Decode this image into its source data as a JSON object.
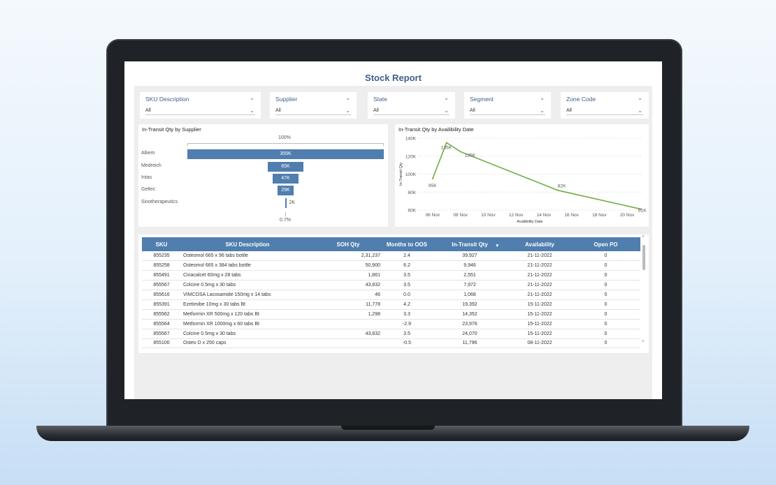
{
  "report": {
    "title": "Stock Report"
  },
  "slicers": [
    {
      "label": "SKU Description",
      "value": "All"
    },
    {
      "label": "Supplier",
      "value": "All"
    },
    {
      "label": "State",
      "value": "All"
    },
    {
      "label": "Segment",
      "value": "All"
    },
    {
      "label": "Zone Code",
      "value": "All"
    }
  ],
  "funnel": {
    "title": "In-Transit Qty by Supplier",
    "top_pct": "100%",
    "bottom_pct": "0.7%",
    "items": [
      {
        "label": "Alkem",
        "value": 355000,
        "display": "355K"
      },
      {
        "label": "Medreich",
        "value": 65000,
        "display": "65K"
      },
      {
        "label": "Intas",
        "value": 47000,
        "display": "47K"
      },
      {
        "label": "Geltec",
        "value": 29000,
        "display": "29K"
      },
      {
        "label": "Sinotherapeutics",
        "value": 2000,
        "display": "2K"
      }
    ]
  },
  "chart_data": {
    "type": "line",
    "title": "In-Transit Qty by Availibility Date",
    "xlabel": "Availibility Date",
    "ylabel": "In-Transit Qty",
    "x_ticks": [
      "06 Nov",
      "08 Nov",
      "10 Nov",
      "12 Nov",
      "14 Nov",
      "16 Nov",
      "18 Nov",
      "20 Nov"
    ],
    "y_ticks": [
      "60K",
      "80K",
      "100K",
      "120K",
      "140K"
    ],
    "ylim": [
      60000,
      140000
    ],
    "xlim": [
      "2022-11-05",
      "2022-11-21"
    ],
    "series": [
      {
        "color": "#70ad47",
        "points": [
          {
            "x": "2022-11-06",
            "y": 95000,
            "label": "95K"
          },
          {
            "x": "2022-11-07",
            "y": 135000,
            "label": "135K"
          },
          {
            "x": "2022-11-08",
            "y": 125000,
            "label": "125K"
          },
          {
            "x": "2022-11-15",
            "y": 82000,
            "label": "82K"
          },
          {
            "x": "2022-11-21",
            "y": 61000,
            "label": "61K"
          }
        ]
      }
    ]
  },
  "table": {
    "headers": [
      "SKU",
      "SKU Description",
      "SOH Qty",
      "Months to OOS",
      "In-Transit Qty",
      "Availability",
      "Open PO"
    ],
    "rows": [
      [
        "855235",
        "Osteomol 665 x 96 tabs bottle",
        "2,31,237",
        "2.4",
        "39,927",
        "21-11-2022",
        "0"
      ],
      [
        "855258",
        "Osteomol 665 x 384 tabs bottle",
        "50,900",
        "6.2",
        "9,946",
        "21-11-2022",
        "0"
      ],
      [
        "855491",
        "Cinacalcet 60mg x 28 tabs",
        "1,861",
        "3.5",
        "2,551",
        "21-11-2022",
        "0"
      ],
      [
        "855567",
        "Colcine 0.5mg x 30 tabs",
        "43,832",
        "3.5",
        "7,972",
        "21-11-2022",
        "0"
      ],
      [
        "855616",
        "VIMCOSA Lacosamide 150mg x 14 tabs",
        "46",
        "0.0",
        "1,068",
        "21-11-2022",
        "0"
      ],
      [
        "855391",
        "Ezetimibe 10mg x 30 tabs Bt",
        "11,778",
        "4.2",
        "19,392",
        "15-11-2022",
        "0"
      ],
      [
        "855562",
        "Metformin XR 500mg x 120 tabs Bt",
        "1,298",
        "3.3",
        "14,352",
        "15-11-2022",
        "0"
      ],
      [
        "855564",
        "Metformin XR 1000mg x 60 tabs Bt",
        "",
        "-2.9",
        "23,976",
        "15-11-2022",
        "0"
      ],
      [
        "855567",
        "Colcine 0.5mg x 30 tabs",
        "43,832",
        "3.5",
        "24,070",
        "15-11-2022",
        "0"
      ],
      [
        "855100",
        "Osteo D x 250 caps",
        "",
        "-0.5",
        "11,796",
        "08-11-2022",
        "0"
      ]
    ]
  },
  "colors": {
    "accent": "#4f7eaf",
    "title": "#3f5d8a",
    "line": "#70ad47"
  }
}
